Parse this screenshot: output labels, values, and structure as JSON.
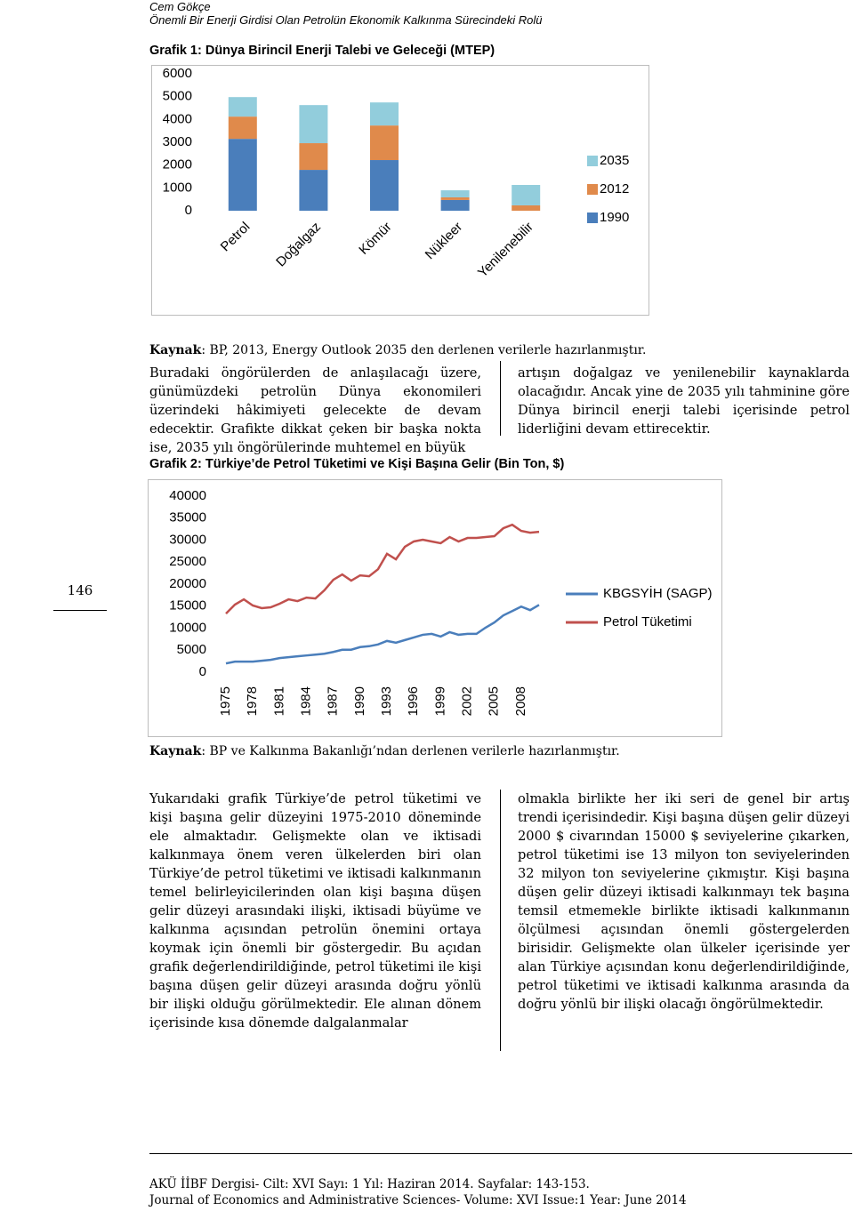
{
  "header": {
    "author": "Cem Gökçe",
    "subtitle": "Önemli Bir Enerji Girdisi Olan Petrolün Ekonomik Kalkınma Sürecindeki Rolü"
  },
  "chart_data": [
    {
      "type": "bar",
      "stacked": true,
      "title": "Grafik 1: Dünya Birincil Enerji Talebi ve Geleceği (MTEP)",
      "categories": [
        "Petrol",
        "Doğalgaz",
        "Kömür",
        "Nükleer",
        "Yenilenebilir"
      ],
      "series": [
        {
          "name": "1990",
          "color": "#4a7ebb",
          "values": [
            3150,
            1790,
            2220,
            470,
            0
          ]
        },
        {
          "name": "2012",
          "color": "#e08a4b",
          "values": [
            975,
            1170,
            1515,
            115,
            235
          ]
        },
        {
          "name": "2035",
          "color": "#92cddc",
          "values": [
            855,
            1670,
            1010,
            310,
            895
          ]
        }
      ],
      "ylim": [
        0,
        6000
      ],
      "yticks": [
        0,
        1000,
        2000,
        3000,
        4000,
        5000,
        6000
      ],
      "grid": false,
      "legend": "right"
    },
    {
      "type": "line",
      "title": "Grafik 2: Türkiye’de Petrol Tüketimi ve Kişi Başına Gelir (Bin Ton, $)",
      "x": [
        1975,
        1976,
        1977,
        1978,
        1979,
        1980,
        1981,
        1982,
        1983,
        1984,
        1985,
        1986,
        1987,
        1988,
        1989,
        1990,
        1991,
        1992,
        1993,
        1994,
        1995,
        1996,
        1997,
        1998,
        1999,
        2000,
        2001,
        2002,
        2003,
        2004,
        2005,
        2006,
        2007,
        2008,
        2009,
        2010
      ],
      "series": [
        {
          "name": "KBGSYİH (SAGP)",
          "color": "#4a7ebb",
          "values": [
            2000,
            2400,
            2400,
            2400,
            2600,
            2800,
            3200,
            3400,
            3600,
            3800,
            4000,
            4200,
            4600,
            5100,
            5100,
            5700,
            5900,
            6300,
            7100,
            6700,
            7300,
            7900,
            8500,
            8700,
            8100,
            9100,
            8500,
            8700,
            8700,
            10100,
            11300,
            12900,
            13900,
            14900,
            14100,
            15300
          ]
        },
        {
          "name": "Petrol Tüketimi",
          "color": "#c0504d",
          "values": [
            13300,
            15350,
            16550,
            15150,
            14550,
            14750,
            15550,
            16550,
            16150,
            16950,
            16750,
            18600,
            21000,
            22200,
            20800,
            22000,
            21800,
            23400,
            26900,
            25650,
            28500,
            29700,
            30100,
            29700,
            29300,
            30700,
            29700,
            30500,
            30500,
            30700,
            30900,
            32700,
            33500,
            32100,
            31700,
            31900
          ]
        }
      ],
      "xlim": [
        1975,
        2010
      ],
      "xticks": [
        1975,
        1978,
        1981,
        1984,
        1987,
        1990,
        1993,
        1996,
        1999,
        2002,
        2005,
        2008
      ],
      "ylim": [
        0,
        40000
      ],
      "yticks": [
        0,
        5000,
        10000,
        15000,
        20000,
        25000,
        30000,
        35000,
        40000
      ],
      "grid": false,
      "legend": "right"
    }
  ],
  "source1": {
    "label": "Kaynak",
    "text": ": BP, 2013, Energy Outlook 2035 den derlenen verilerle hazırlanmıştır."
  },
  "paragraph1": {
    "left": "Buradaki öngörülerden de anlaşılacağı üzere, günümüzdeki petrolün Dünya ekonomileri üzerindeki hâkimiyeti gelecekte de devam edecektir. Grafikte dikkat çeken bir başka nokta ise, 2035 yılı öngörülerinde muhtemel en büyük",
    "right": "artışın doğalgaz ve yenilenebilir kaynaklarda olacağıdır. Ancak yine de 2035 yılı tahminine göre Dünya birincil enerji talebi içerisinde petrol liderliğini devam ettirecektir."
  },
  "source2": {
    "label": "Kaynak",
    "text": ": BP ve Kalkınma Bakanlığı’ndan derlenen verilerle hazırlanmıştır."
  },
  "paragraph2": {
    "left": "Yukarıdaki grafik Türkiye’de petrol tüketimi ve kişi başına gelir düzeyini 1975-2010 döneminde ele almaktadır. Gelişmekte olan ve iktisadi kalkınmaya önem veren ülkelerden biri olan Türkiye’de petrol tüketimi ve iktisadi kalkınmanın temel belirleyicilerinden olan kişi başına düşen gelir düzeyi arasındaki ilişki, iktisadi büyüme ve kalkınma açısından petrolün önemini ortaya koymak için önemli bir göstergedir. Bu açıdan grafik değerlendirildiğinde, petrol tüketimi ile kişi başına düşen gelir düzeyi arasında doğru yönlü bir ilişki olduğu görülmektedir. Ele alınan dönem içerisinde kısa dönemde dalgalanmalar",
    "right": "olmakla birlikte her iki seri de genel bir artış trendi içerisindedir. Kişi başına düşen gelir düzeyi 2000 $ civarından 15000 $ seviyelerine çıkarken, petrol tüketimi ise 13 milyon ton seviyelerinden 32 milyon ton seviyelerine çıkmıştır. Kişi başına düşen gelir düzeyi iktisadi kalkınmayı tek başına temsil etmemekle birlikte iktisadi kalkınmanın ölçülmesi açısından önemli göstergelerden birisidir. Gelişmekte olan ülkeler içerisinde yer alan Türkiye açısından konu değerlendirildiğinde, petrol tüketimi ve iktisadi kalkınma arasında da doğru yönlü bir ilişki olacağı öngörülmektedir."
  },
  "page_number": "146",
  "footer": {
    "line1": "AKÜ İİBF Dergisi- Cilt: XVI Sayı: 1 Yıl: Haziran 2014. Sayfalar: 143-153.",
    "line2": "Journal of Economics and Administrative Sciences- Volume: XVI Issue:1 Year: June 2014"
  }
}
